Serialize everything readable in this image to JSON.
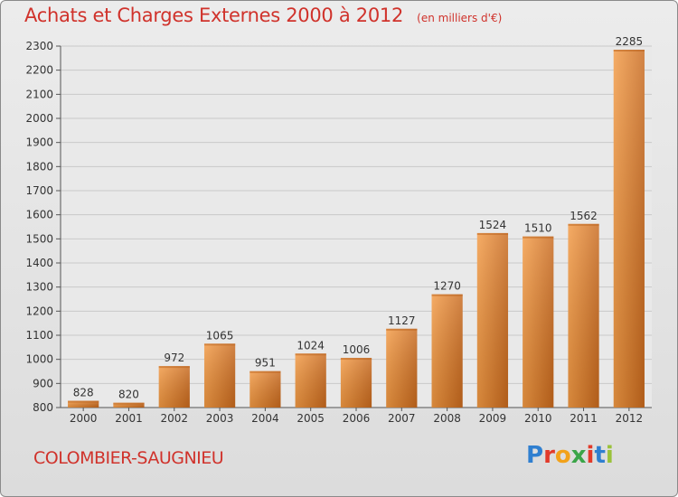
{
  "chart_data": {
    "type": "bar",
    "title": "Achats et Charges Externes 2000 à 2012",
    "subtitle": "(en milliers d'€)",
    "categories": [
      "2000",
      "2001",
      "2002",
      "2003",
      "2004",
      "2005",
      "2006",
      "2007",
      "2008",
      "2009",
      "2010",
      "2011",
      "2012"
    ],
    "values": [
      828,
      820,
      972,
      1065,
      951,
      1024,
      1006,
      1127,
      1270,
      1524,
      1510,
      1562,
      2285
    ],
    "ylim": [
      800,
      2300
    ],
    "yticks": [
      800,
      900,
      1000,
      1100,
      1200,
      1300,
      1400,
      1500,
      1600,
      1700,
      1800,
      1900,
      2000,
      2100,
      2200,
      2300
    ],
    "xlabel": "",
    "ylabel": "",
    "grid": true,
    "bar_color": "#f39a44",
    "bar_color_dark": "#c8691d"
  },
  "location": "COLOMBIER-SAUGNIEU",
  "logo": {
    "text": "Proxiti",
    "letters": [
      "P",
      "r",
      "o",
      "x",
      "i",
      "t",
      "i"
    ],
    "colors": [
      "#2f7fd0",
      "#e23a2a",
      "#f2a21a",
      "#3aa548",
      "#e23a2a",
      "#2f7fd0",
      "#9ac23a"
    ]
  },
  "colors": {
    "title": "#d0322b",
    "background": "#e6e6e6"
  }
}
